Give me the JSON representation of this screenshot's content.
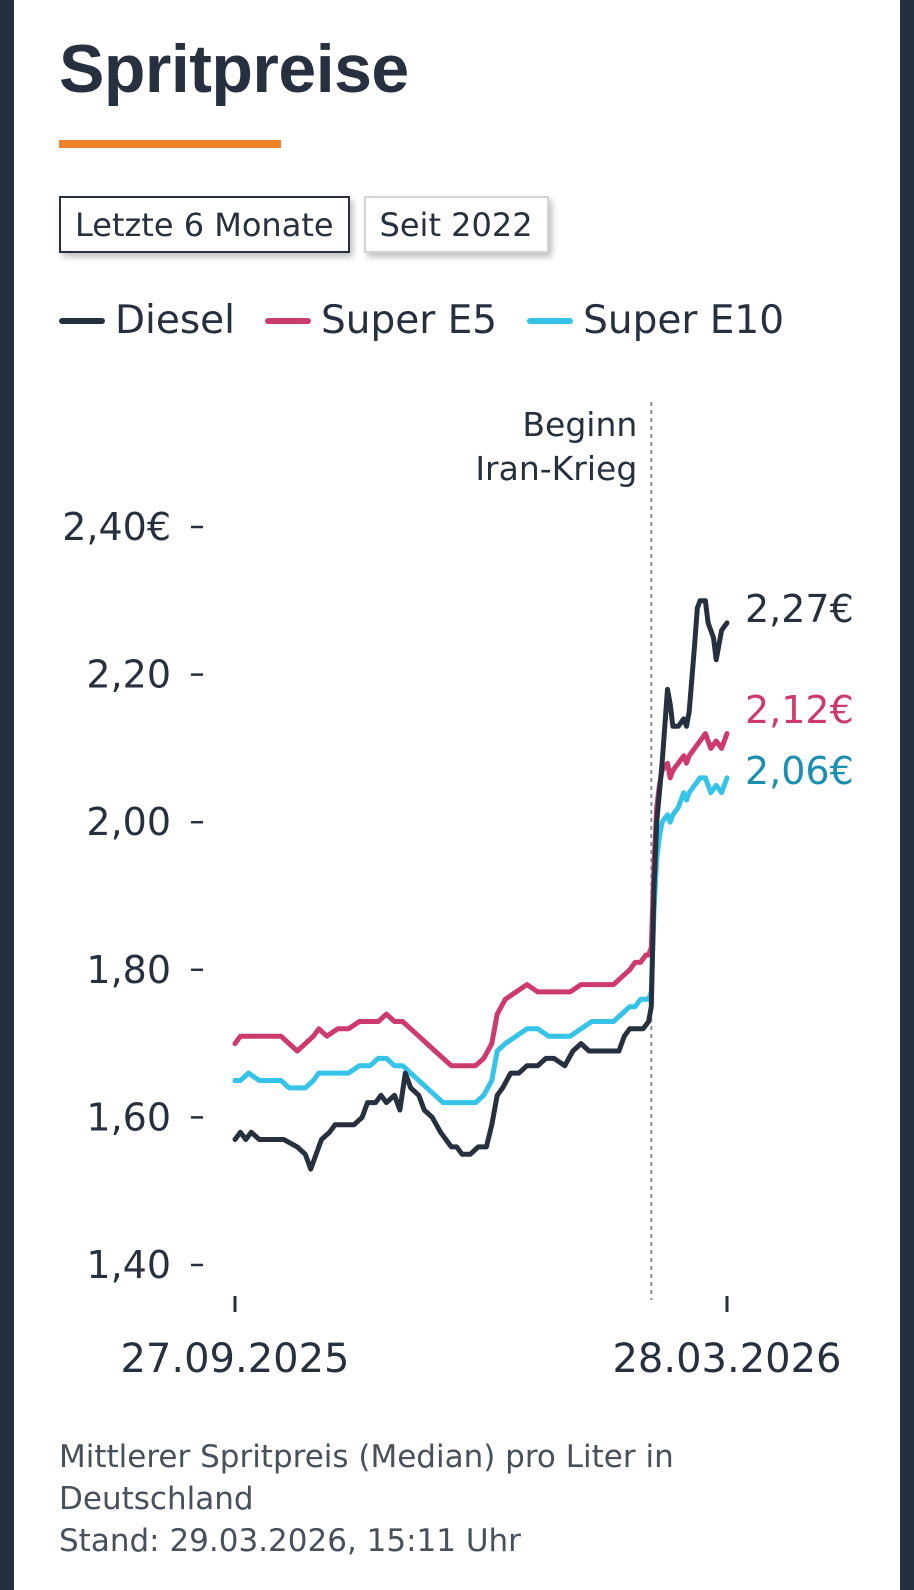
{
  "header": {
    "title": "Spritpreise"
  },
  "tabs": [
    {
      "label": "Letzte 6 Monate",
      "active": true
    },
    {
      "label": "Seit 2022",
      "active": false
    }
  ],
  "colors": {
    "diesel": "#27303e",
    "e5": "#cc3a6e",
    "e10": "#35c3e7",
    "e10_label": "#1a8fb0",
    "accent": "#ee8127"
  },
  "chart_data": {
    "type": "line",
    "x_ticks": [
      "27.09.2025",
      "28.03.2026"
    ],
    "y_ticks": [
      "2,40€",
      "2,20",
      "2,00",
      "1,80",
      "1,60",
      "1,40"
    ],
    "y_tick_values": [
      2.4,
      2.2,
      2.0,
      1.8,
      1.6,
      1.4
    ],
    "ylim": [
      1.4,
      2.4
    ],
    "annotation": {
      "date": "2026-02-28",
      "lines": [
        "Beginn",
        "Iran-Krieg"
      ]
    },
    "series": [
      {
        "key": "diesel",
        "name": "Diesel",
        "end_label": "2,27€",
        "points": [
          [
            "2025-09-27",
            1.57
          ],
          [
            "2025-09-29",
            1.58
          ],
          [
            "2025-10-01",
            1.57
          ],
          [
            "2025-10-03",
            1.58
          ],
          [
            "2025-10-06",
            1.57
          ],
          [
            "2025-10-10",
            1.57
          ],
          [
            "2025-10-15",
            1.57
          ],
          [
            "2025-10-20",
            1.56
          ],
          [
            "2025-10-23",
            1.55
          ],
          [
            "2025-10-25",
            1.53
          ],
          [
            "2025-10-27",
            1.55
          ],
          [
            "2025-10-29",
            1.57
          ],
          [
            "2025-11-01",
            1.58
          ],
          [
            "2025-11-03",
            1.59
          ],
          [
            "2025-11-06",
            1.59
          ],
          [
            "2025-11-10",
            1.59
          ],
          [
            "2025-11-13",
            1.6
          ],
          [
            "2025-11-15",
            1.62
          ],
          [
            "2025-11-18",
            1.62
          ],
          [
            "2025-11-20",
            1.63
          ],
          [
            "2025-11-22",
            1.62
          ],
          [
            "2025-11-25",
            1.63
          ],
          [
            "2025-11-27",
            1.61
          ],
          [
            "2025-11-29",
            1.66
          ],
          [
            "2025-12-01",
            1.64
          ],
          [
            "2025-12-04",
            1.63
          ],
          [
            "2025-12-06",
            1.61
          ],
          [
            "2025-12-09",
            1.6
          ],
          [
            "2025-12-12",
            1.58
          ],
          [
            "2025-12-14",
            1.57
          ],
          [
            "2025-12-16",
            1.56
          ],
          [
            "2025-12-18",
            1.56
          ],
          [
            "2025-12-20",
            1.55
          ],
          [
            "2025-12-23",
            1.55
          ],
          [
            "2025-12-26",
            1.56
          ],
          [
            "2025-12-29",
            1.56
          ],
          [
            "2025-12-31",
            1.59
          ],
          [
            "2026-01-02",
            1.63
          ],
          [
            "2026-01-04",
            1.64
          ],
          [
            "2026-01-07",
            1.66
          ],
          [
            "2026-01-10",
            1.66
          ],
          [
            "2026-01-13",
            1.67
          ],
          [
            "2026-01-17",
            1.67
          ],
          [
            "2026-01-20",
            1.68
          ],
          [
            "2026-01-23",
            1.68
          ],
          [
            "2026-01-27",
            1.67
          ],
          [
            "2026-01-30",
            1.69
          ],
          [
            "2026-02-02",
            1.7
          ],
          [
            "2026-02-05",
            1.69
          ],
          [
            "2026-02-09",
            1.69
          ],
          [
            "2026-02-13",
            1.69
          ],
          [
            "2026-02-16",
            1.69
          ],
          [
            "2026-02-18",
            1.71
          ],
          [
            "2026-02-20",
            1.72
          ],
          [
            "2026-02-23",
            1.72
          ],
          [
            "2026-02-25",
            1.72
          ],
          [
            "2026-02-27",
            1.73
          ],
          [
            "2026-02-28",
            1.75
          ],
          [
            "2026-03-01",
            1.91
          ],
          [
            "2026-03-02",
            2.0
          ],
          [
            "2026-03-03",
            2.04
          ],
          [
            "2026-03-04",
            2.08
          ],
          [
            "2026-03-06",
            2.18
          ],
          [
            "2026-03-07",
            2.16
          ],
          [
            "2026-03-08",
            2.13
          ],
          [
            "2026-03-10",
            2.13
          ],
          [
            "2026-03-12",
            2.14
          ],
          [
            "2026-03-13",
            2.13
          ],
          [
            "2026-03-14",
            2.15
          ],
          [
            "2026-03-16",
            2.24
          ],
          [
            "2026-03-17",
            2.29
          ],
          [
            "2026-03-18",
            2.3
          ],
          [
            "2026-03-20",
            2.3
          ],
          [
            "2026-03-21",
            2.27
          ],
          [
            "2026-03-22",
            2.26
          ],
          [
            "2026-03-23",
            2.25
          ],
          [
            "2026-03-24",
            2.22
          ],
          [
            "2026-03-26",
            2.26
          ],
          [
            "2026-03-28",
            2.27
          ]
        ]
      },
      {
        "key": "e5",
        "name": "Super E5",
        "end_label": "2,12€",
        "points": [
          [
            "2025-09-27",
            1.7
          ],
          [
            "2025-09-29",
            1.71
          ],
          [
            "2025-10-02",
            1.71
          ],
          [
            "2025-10-06",
            1.71
          ],
          [
            "2025-10-10",
            1.71
          ],
          [
            "2025-10-14",
            1.71
          ],
          [
            "2025-10-17",
            1.7
          ],
          [
            "2025-10-20",
            1.69
          ],
          [
            "2025-10-23",
            1.7
          ],
          [
            "2025-10-26",
            1.71
          ],
          [
            "2025-10-28",
            1.72
          ],
          [
            "2025-10-31",
            1.71
          ],
          [
            "2025-11-04",
            1.72
          ],
          [
            "2025-11-08",
            1.72
          ],
          [
            "2025-11-12",
            1.73
          ],
          [
            "2025-11-16",
            1.73
          ],
          [
            "2025-11-19",
            1.73
          ],
          [
            "2025-11-22",
            1.74
          ],
          [
            "2025-11-25",
            1.73
          ],
          [
            "2025-11-28",
            1.73
          ],
          [
            "2025-12-01",
            1.72
          ],
          [
            "2025-12-04",
            1.71
          ],
          [
            "2025-12-07",
            1.7
          ],
          [
            "2025-12-10",
            1.69
          ],
          [
            "2025-12-13",
            1.68
          ],
          [
            "2025-12-16",
            1.67
          ],
          [
            "2025-12-19",
            1.67
          ],
          [
            "2025-12-22",
            1.67
          ],
          [
            "2025-12-25",
            1.67
          ],
          [
            "2025-12-28",
            1.68
          ],
          [
            "2025-12-31",
            1.7
          ],
          [
            "2026-01-02",
            1.74
          ],
          [
            "2026-01-05",
            1.76
          ],
          [
            "2026-01-09",
            1.77
          ],
          [
            "2026-01-13",
            1.78
          ],
          [
            "2026-01-17",
            1.77
          ],
          [
            "2026-01-21",
            1.77
          ],
          [
            "2026-01-25",
            1.77
          ],
          [
            "2026-01-29",
            1.77
          ],
          [
            "2026-02-02",
            1.78
          ],
          [
            "2026-02-06",
            1.78
          ],
          [
            "2026-02-10",
            1.78
          ],
          [
            "2026-02-14",
            1.78
          ],
          [
            "2026-02-17",
            1.79
          ],
          [
            "2026-02-20",
            1.8
          ],
          [
            "2026-02-22",
            1.81
          ],
          [
            "2026-02-24",
            1.81
          ],
          [
            "2026-02-26",
            1.82
          ],
          [
            "2026-02-27",
            1.82
          ],
          [
            "2026-02-28",
            1.83
          ],
          [
            "2026-03-01",
            1.94
          ],
          [
            "2026-03-02",
            2.02
          ],
          [
            "2026-03-03",
            2.05
          ],
          [
            "2026-03-04",
            2.07
          ],
          [
            "2026-03-06",
            2.08
          ],
          [
            "2026-03-07",
            2.06
          ],
          [
            "2026-03-08",
            2.07
          ],
          [
            "2026-03-10",
            2.08
          ],
          [
            "2026-03-12",
            2.09
          ],
          [
            "2026-03-13",
            2.08
          ],
          [
            "2026-03-14",
            2.09
          ],
          [
            "2026-03-16",
            2.1
          ],
          [
            "2026-03-18",
            2.11
          ],
          [
            "2026-03-20",
            2.12
          ],
          [
            "2026-03-21",
            2.11
          ],
          [
            "2026-03-22",
            2.1
          ],
          [
            "2026-03-24",
            2.11
          ],
          [
            "2026-03-26",
            2.1
          ],
          [
            "2026-03-28",
            2.12
          ]
        ]
      },
      {
        "key": "e10",
        "name": "Super E10",
        "end_label": "2,06€",
        "points": [
          [
            "2025-09-27",
            1.65
          ],
          [
            "2025-09-29",
            1.65
          ],
          [
            "2025-10-02",
            1.66
          ],
          [
            "2025-10-06",
            1.65
          ],
          [
            "2025-10-10",
            1.65
          ],
          [
            "2025-10-14",
            1.65
          ],
          [
            "2025-10-17",
            1.64
          ],
          [
            "2025-10-20",
            1.64
          ],
          [
            "2025-10-23",
            1.64
          ],
          [
            "2025-10-26",
            1.65
          ],
          [
            "2025-10-28",
            1.66
          ],
          [
            "2025-10-31",
            1.66
          ],
          [
            "2025-11-04",
            1.66
          ],
          [
            "2025-11-08",
            1.66
          ],
          [
            "2025-11-12",
            1.67
          ],
          [
            "2025-11-16",
            1.67
          ],
          [
            "2025-11-19",
            1.68
          ],
          [
            "2025-11-22",
            1.68
          ],
          [
            "2025-11-25",
            1.67
          ],
          [
            "2025-11-28",
            1.67
          ],
          [
            "2025-12-01",
            1.66
          ],
          [
            "2025-12-04",
            1.65
          ],
          [
            "2025-12-07",
            1.64
          ],
          [
            "2025-12-10",
            1.63
          ],
          [
            "2025-12-13",
            1.62
          ],
          [
            "2025-12-16",
            1.62
          ],
          [
            "2025-12-19",
            1.62
          ],
          [
            "2025-12-22",
            1.62
          ],
          [
            "2025-12-25",
            1.62
          ],
          [
            "2025-12-28",
            1.63
          ],
          [
            "2025-12-31",
            1.65
          ],
          [
            "2026-01-02",
            1.69
          ],
          [
            "2026-01-05",
            1.7
          ],
          [
            "2026-01-09",
            1.71
          ],
          [
            "2026-01-13",
            1.72
          ],
          [
            "2026-01-17",
            1.72
          ],
          [
            "2026-01-21",
            1.71
          ],
          [
            "2026-01-25",
            1.71
          ],
          [
            "2026-01-29",
            1.71
          ],
          [
            "2026-02-02",
            1.72
          ],
          [
            "2026-02-06",
            1.73
          ],
          [
            "2026-02-10",
            1.73
          ],
          [
            "2026-02-14",
            1.73
          ],
          [
            "2026-02-17",
            1.74
          ],
          [
            "2026-02-20",
            1.75
          ],
          [
            "2026-02-22",
            1.75
          ],
          [
            "2026-02-24",
            1.76
          ],
          [
            "2026-02-26",
            1.76
          ],
          [
            "2026-02-27",
            1.76
          ],
          [
            "2026-02-28",
            1.77
          ],
          [
            "2026-03-01",
            1.88
          ],
          [
            "2026-03-02",
            1.95
          ],
          [
            "2026-03-03",
            1.98
          ],
          [
            "2026-03-04",
            2.0
          ],
          [
            "2026-03-06",
            2.01
          ],
          [
            "2026-03-07",
            2.0
          ],
          [
            "2026-03-08",
            2.01
          ],
          [
            "2026-03-10",
            2.02
          ],
          [
            "2026-03-12",
            2.04
          ],
          [
            "2026-03-13",
            2.03
          ],
          [
            "2026-03-14",
            2.04
          ],
          [
            "2026-03-16",
            2.05
          ],
          [
            "2026-03-18",
            2.06
          ],
          [
            "2026-03-20",
            2.06
          ],
          [
            "2026-03-21",
            2.05
          ],
          [
            "2026-03-22",
            2.04
          ],
          [
            "2026-03-24",
            2.05
          ],
          [
            "2026-03-26",
            2.04
          ],
          [
            "2026-03-28",
            2.06
          ]
        ]
      }
    ]
  },
  "footer": {
    "line1": "Mittlerer Spritpreis (Median) pro Liter in",
    "line2": "Deutschland",
    "line3": "Stand: 29.03.2026, 15:11 Uhr"
  }
}
